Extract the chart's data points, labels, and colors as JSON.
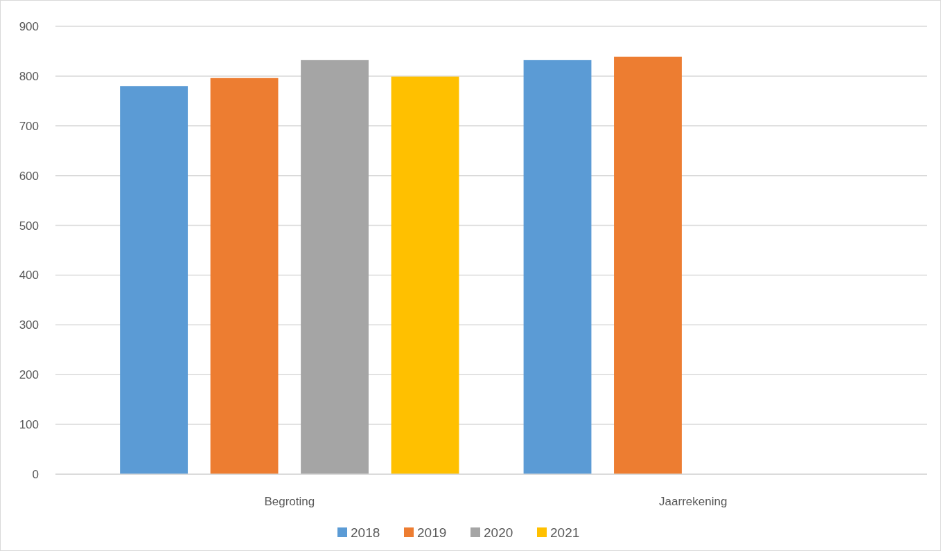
{
  "chart_data": {
    "type": "bar",
    "categories": [
      "Begroting",
      "Jaarrekening"
    ],
    "series": [
      {
        "name": "2018",
        "color": "#5b9bd5",
        "values": [
          780,
          832
        ]
      },
      {
        "name": "2019",
        "color": "#ed7d31",
        "values": [
          796,
          839
        ]
      },
      {
        "name": "2020",
        "color": "#a5a5a5",
        "values": [
          832,
          null
        ]
      },
      {
        "name": "2021",
        "color": "#ffc000",
        "values": [
          799,
          null
        ]
      }
    ],
    "ylim": [
      0,
      900
    ],
    "yticks": [
      0,
      100,
      200,
      300,
      400,
      500,
      600,
      700,
      800,
      900
    ],
    "grid": "y",
    "legend": "bottom"
  }
}
